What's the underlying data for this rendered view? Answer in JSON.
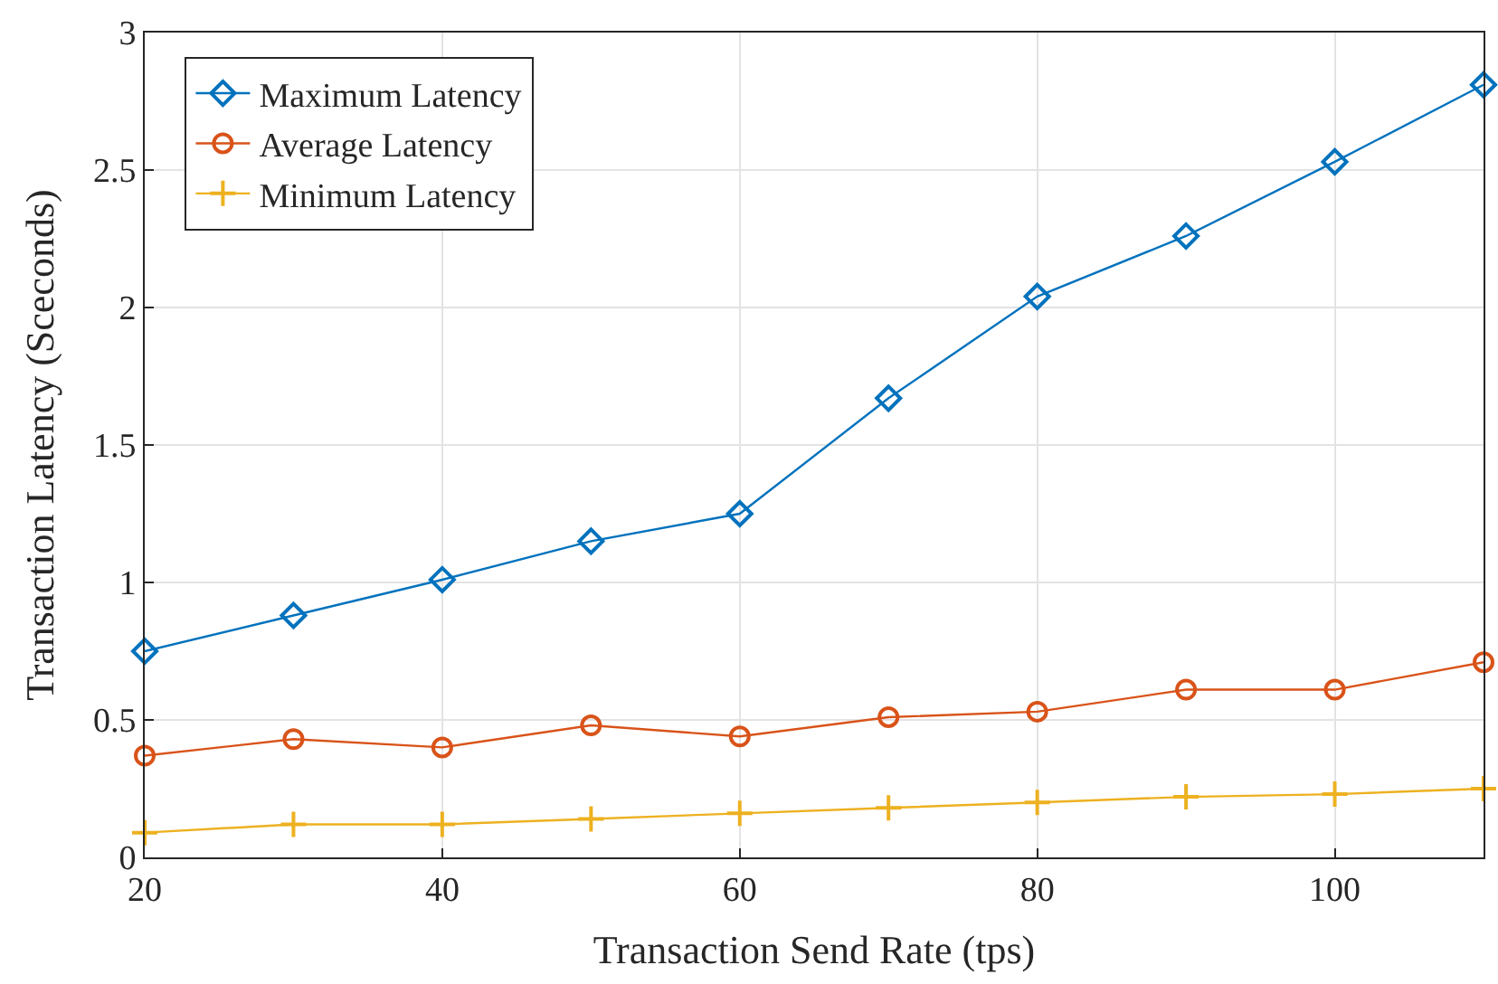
{
  "chart_data": {
    "type": "line",
    "xlabel": "Transaction Send Rate (tps)",
    "ylabel": "Transaction Latency (Sceconds)",
    "x": [
      20,
      30,
      40,
      50,
      60,
      70,
      80,
      90,
      100,
      110
    ],
    "series": [
      {
        "name": "Maximum Latency",
        "color": "#0072bd",
        "marker": "diamond",
        "values": [
          0.75,
          0.88,
          1.01,
          1.15,
          1.25,
          1.67,
          2.04,
          2.26,
          2.53,
          2.81
        ]
      },
      {
        "name": "Average Latency",
        "color": "#d95319",
        "marker": "circle",
        "values": [
          0.37,
          0.43,
          0.4,
          0.48,
          0.44,
          0.51,
          0.53,
          0.61,
          0.61,
          0.71
        ]
      },
      {
        "name": "Minimum Latency",
        "color": "#edb120",
        "marker": "cross",
        "values": [
          0.09,
          0.12,
          0.12,
          0.14,
          0.16,
          0.18,
          0.2,
          0.22,
          0.23,
          0.25
        ]
      }
    ],
    "xlim": [
      20,
      110
    ],
    "xticks": [
      20,
      40,
      60,
      80,
      100
    ],
    "ylim": [
      0,
      3
    ],
    "yticks": [
      0,
      0.5,
      1,
      1.5,
      2,
      2.5,
      3
    ],
    "grid": true,
    "legend": "top left",
    "line_style": "solid"
  }
}
